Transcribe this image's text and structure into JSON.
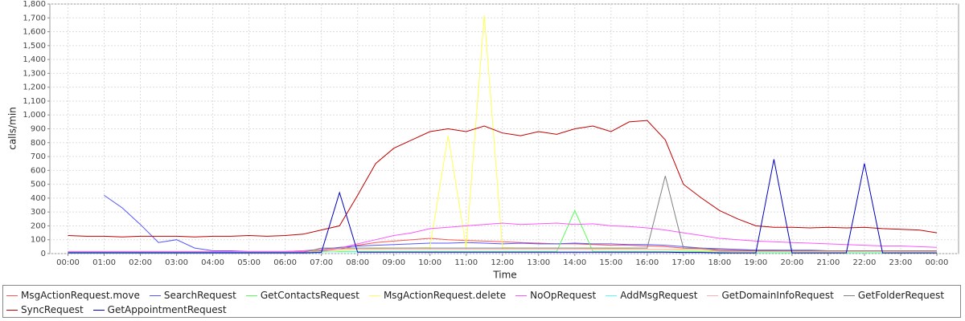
{
  "chart_data": {
    "type": "line",
    "xlabel": "Time",
    "ylabel": "calls/min",
    "grid": true,
    "legend": "bottom",
    "xlim": [
      -0.5,
      24.6
    ],
    "ylim": [
      0,
      1800
    ],
    "xticks": [
      {
        "value": 0,
        "label": "00:00"
      },
      {
        "value": 1,
        "label": "01:00"
      },
      {
        "value": 2,
        "label": "02:00"
      },
      {
        "value": 3,
        "label": "03:00"
      },
      {
        "value": 4,
        "label": "04:00"
      },
      {
        "value": 5,
        "label": "05:00"
      },
      {
        "value": 6,
        "label": "06:00"
      },
      {
        "value": 7,
        "label": "07:00"
      },
      {
        "value": 8,
        "label": "08:00"
      },
      {
        "value": 9,
        "label": "09:00"
      },
      {
        "value": 10,
        "label": "10:00"
      },
      {
        "value": 11,
        "label": "11:00"
      },
      {
        "value": 12,
        "label": "12:00"
      },
      {
        "value": 13,
        "label": "13:00"
      },
      {
        "value": 14,
        "label": "14:00"
      },
      {
        "value": 15,
        "label": "15:00"
      },
      {
        "value": 16,
        "label": "16:00"
      },
      {
        "value": 17,
        "label": "17:00"
      },
      {
        "value": 18,
        "label": "18:00"
      },
      {
        "value": 19,
        "label": "19:00"
      },
      {
        "value": 20,
        "label": "20:00"
      },
      {
        "value": 21,
        "label": "21:00"
      },
      {
        "value": 22,
        "label": "22:00"
      },
      {
        "value": 23,
        "label": "23:00"
      },
      {
        "value": 24,
        "label": "00:00"
      }
    ],
    "yticks": [
      0,
      100,
      200,
      300,
      400,
      500,
      600,
      700,
      800,
      900,
      {
        "value": 1000,
        "label": "1,000"
      },
      {
        "value": 1100,
        "label": "1,100"
      },
      {
        "value": 1200,
        "label": "1,200"
      },
      {
        "value": 1300,
        "label": "1,300"
      },
      {
        "value": 1400,
        "label": "1,400"
      },
      {
        "value": 1500,
        "label": "1,500"
      },
      {
        "value": 1600,
        "label": "1,600"
      },
      {
        "value": 1700,
        "label": "1,700"
      },
      {
        "value": 1800,
        "label": "1,800"
      }
    ],
    "x": [
      0,
      0.5,
      1,
      1.5,
      2,
      2.5,
      3,
      3.5,
      4,
      4.5,
      5,
      5.5,
      6,
      6.5,
      7,
      7.5,
      8,
      8.5,
      9,
      9.5,
      10,
      10.5,
      11,
      11.5,
      12,
      12.5,
      13,
      13.5,
      14,
      14.5,
      15,
      15.5,
      16,
      16.5,
      17,
      17.5,
      18,
      18.5,
      19,
      19.5,
      20,
      20.5,
      21,
      21.5,
      22,
      22.5,
      23,
      23.5,
      24
    ],
    "series": [
      {
        "name": "MsgActionRequest.move",
        "color": "#ff5555",
        "values": [
          10,
          10,
          10,
          10,
          10,
          10,
          10,
          10,
          10,
          10,
          10,
          10,
          10,
          15,
          20,
          30,
          60,
          80,
          90,
          100,
          110,
          100,
          95,
          90,
          85,
          80,
          75,
          70,
          70,
          65,
          60,
          60,
          55,
          50,
          40,
          35,
          30,
          28,
          25,
          25,
          22,
          22,
          20,
          20,
          20,
          18,
          18,
          15,
          15
        ]
      },
      {
        "name": "SearchRequest",
        "color": "#5555ff",
        "values": [
          null,
          null,
          420,
          330,
          210,
          80,
          100,
          40,
          20,
          20,
          15,
          15,
          15,
          20,
          30,
          45,
          55,
          60,
          65,
          70,
          75,
          75,
          80,
          75,
          70,
          75,
          70,
          70,
          75,
          70,
          70,
          65,
          65,
          60,
          50,
          40,
          35,
          30,
          25,
          25,
          25,
          25,
          20,
          20,
          20,
          20,
          15,
          15,
          15
        ]
      },
      {
        "name": "GetContactsRequest",
        "color": "#55ff55",
        "values": [
          5,
          5,
          5,
          5,
          5,
          5,
          5,
          5,
          5,
          5,
          5,
          5,
          5,
          5,
          15,
          15,
          15,
          15,
          15,
          15,
          15,
          15,
          15,
          15,
          15,
          15,
          15,
          15,
          310,
          15,
          15,
          15,
          15,
          15,
          15,
          15,
          8,
          8,
          8,
          8,
          8,
          8,
          8,
          8,
          8,
          8,
          8,
          8,
          8
        ]
      },
      {
        "name": "MsgActionRequest.delete",
        "color": "#ffff55",
        "values": [
          5,
          5,
          5,
          5,
          5,
          5,
          5,
          5,
          5,
          5,
          5,
          5,
          5,
          5,
          10,
          20,
          30,
          35,
          40,
          40,
          45,
          850,
          45,
          1720,
          45,
          40,
          40,
          40,
          40,
          35,
          35,
          35,
          30,
          30,
          25,
          20,
          15,
          10,
          10,
          10,
          10,
          10,
          10,
          10,
          10,
          10,
          10,
          10,
          10
        ]
      },
      {
        "name": "NoOpRequest",
        "color": "#ff55ff",
        "values": [
          15,
          15,
          15,
          15,
          15,
          15,
          15,
          15,
          15,
          15,
          15,
          15,
          15,
          20,
          25,
          40,
          70,
          100,
          130,
          150,
          180,
          190,
          200,
          210,
          220,
          210,
          215,
          220,
          210,
          215,
          200,
          195,
          185,
          170,
          150,
          130,
          110,
          100,
          90,
          85,
          80,
          75,
          70,
          65,
          60,
          55,
          55,
          50,
          45
        ]
      },
      {
        "name": "AddMsgRequest",
        "color": "#55ffff",
        "values": [
          3,
          3,
          3,
          3,
          3,
          3,
          3,
          3,
          3,
          3,
          3,
          3,
          3,
          3,
          12,
          12,
          12,
          12,
          12,
          12,
          12,
          12,
          12,
          12,
          12,
          12,
          12,
          12,
          12,
          12,
          12,
          12,
          12,
          12,
          12,
          12,
          5,
          5,
          5,
          5,
          5,
          5,
          5,
          5,
          5,
          5,
          5,
          5,
          5
        ]
      },
      {
        "name": "GetDomainInfoRequest",
        "color": "#ffafaf",
        "values": [
          10,
          10,
          10,
          10,
          10,
          10,
          10,
          10,
          10,
          10,
          10,
          10,
          10,
          10,
          30,
          30,
          30,
          30,
          30,
          30,
          30,
          30,
          30,
          30,
          30,
          30,
          30,
          30,
          30,
          30,
          30,
          30,
          30,
          30,
          30,
          30,
          15,
          15,
          15,
          15,
          15,
          15,
          15,
          15,
          15,
          15,
          15,
          15,
          15
        ]
      },
      {
        "name": "GetFolderRequest",
        "color": "#808080",
        "values": [
          8,
          8,
          8,
          8,
          8,
          8,
          8,
          8,
          8,
          8,
          8,
          8,
          8,
          8,
          40,
          40,
          40,
          40,
          40,
          40,
          40,
          40,
          40,
          40,
          40,
          40,
          40,
          40,
          40,
          40,
          40,
          40,
          40,
          560,
          40,
          40,
          20,
          20,
          20,
          20,
          20,
          20,
          20,
          20,
          20,
          20,
          20,
          20,
          20
        ]
      },
      {
        "name": "SyncRequest",
        "color": "#c00000",
        "values": [
          130,
          125,
          125,
          120,
          125,
          125,
          125,
          120,
          125,
          125,
          130,
          125,
          130,
          140,
          170,
          200,
          420,
          650,
          760,
          820,
          880,
          900,
          880,
          920,
          870,
          850,
          880,
          860,
          900,
          920,
          880,
          950,
          960,
          820,
          500,
          400,
          310,
          250,
          200,
          190,
          190,
          185,
          190,
          185,
          190,
          180,
          175,
          170,
          150
        ]
      },
      {
        "name": "GetAppointmentRequest",
        "color": "#0000c0",
        "values": [
          5,
          5,
          5,
          5,
          5,
          5,
          5,
          5,
          5,
          5,
          5,
          5,
          5,
          5,
          8,
          440,
          10,
          10,
          10,
          10,
          10,
          10,
          10,
          10,
          10,
          10,
          10,
          10,
          10,
          10,
          10,
          10,
          10,
          10,
          8,
          8,
          5,
          5,
          5,
          680,
          5,
          5,
          5,
          5,
          650,
          5,
          5,
          5,
          5
        ]
      }
    ]
  }
}
